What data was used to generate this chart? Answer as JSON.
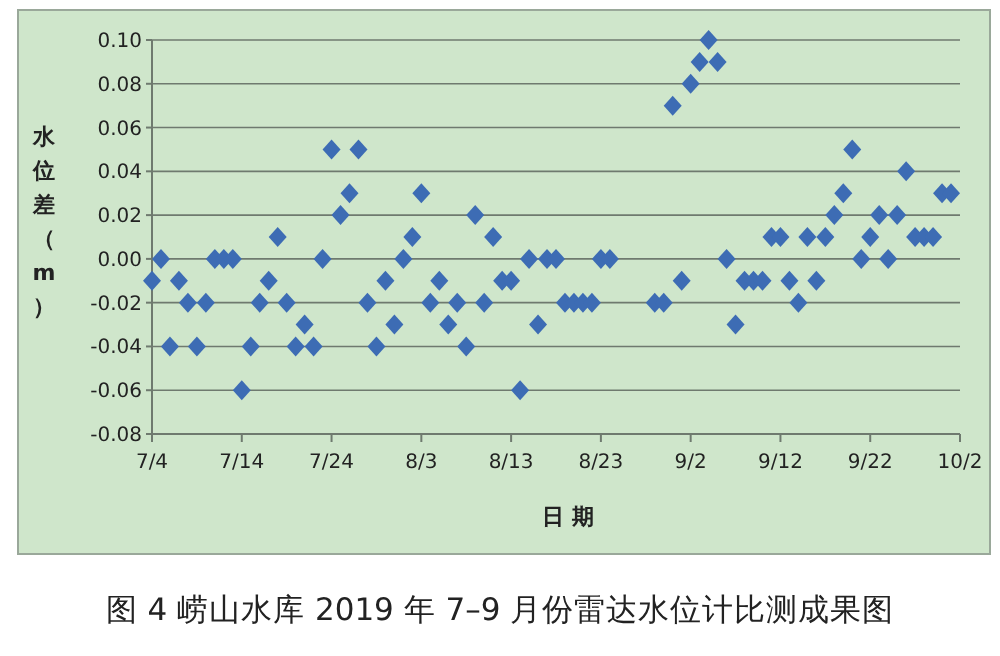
{
  "chart_data": {
    "type": "scatter",
    "title": "图 4  崂山水库 2019 年 7–9 月份雷达水位计比测成果图",
    "xlabel": "日 期",
    "ylabel": "水位差（m）",
    "x": [
      "--07-04",
      "--07-05",
      "--07-06",
      "--07-07",
      "--07-08",
      "--07-09",
      "--07-10",
      "--07-11",
      "--07-12",
      "--07-13",
      "--07-14",
      "--07-15",
      "--07-16",
      "--07-17",
      "--07-18",
      "--07-19",
      "--07-20",
      "--07-21",
      "--07-22",
      "--07-23",
      "--07-24",
      "--07-25",
      "--07-26",
      "--07-27",
      "--07-28",
      "--07-29",
      "--07-30",
      "--07-31",
      "--08-01",
      "--08-02",
      "--08-03",
      "--08-04",
      "--08-05",
      "--08-06",
      "--08-07",
      "--08-08",
      "--08-09",
      "--08-10",
      "--08-11",
      "--08-12",
      "--08-13",
      "--08-14",
      "--08-15",
      "--08-16",
      "--08-17",
      "--08-18",
      "--08-19",
      "--08-20",
      "--08-21",
      "--08-22",
      "--08-23",
      "--08-24",
      "--08-29",
      "--08-30",
      "--08-31",
      "--09-01",
      "--09-02",
      "--09-03",
      "--09-04",
      "--09-05",
      "--09-06",
      "--09-07",
      "--09-08",
      "--09-09",
      "--09-10",
      "--09-11",
      "--09-12",
      "--09-13",
      "--09-14",
      "--09-15",
      "--09-16",
      "--09-17",
      "--09-18",
      "--09-19",
      "--09-20",
      "--09-21",
      "--09-22",
      "--09-23",
      "--09-24",
      "--09-25",
      "--09-26",
      "--09-27",
      "--09-28",
      "--09-29",
      "--09-30",
      "--10-01"
    ],
    "series": [
      {
        "color": "#3d6cb4",
        "values": [
          -0.01,
          0,
          -0.04,
          -0.01,
          -0.02,
          -0.04,
          -0.02,
          0,
          0,
          0,
          -0.06,
          -0.04,
          -0.02,
          -0.01,
          0.01,
          -0.02,
          -0.04,
          -0.03,
          -0.04,
          0,
          0.05,
          0.02,
          0.03,
          0.05,
          -0.02,
          -0.04,
          -0.01,
          -0.03,
          0,
          0.01,
          0.03,
          -0.02,
          -0.01,
          -0.03,
          -0.02,
          -0.04,
          0.02,
          -0.02,
          0.01,
          -0.01,
          -0.01,
          -0.06,
          0,
          -0.03,
          0,
          0,
          -0.02,
          -0.02,
          -0.02,
          -0.02,
          0,
          0,
          -0.02,
          -0.02,
          0.07,
          -0.01,
          0.08,
          0.09,
          0.1,
          0.09,
          0,
          -0.03,
          -0.01,
          -0.01,
          -0.01,
          0.01,
          0.01,
          -0.01,
          -0.02,
          0.01,
          -0.01,
          0.01,
          0.02,
          0.03,
          0.05,
          0,
          0.01,
          0.02,
          0,
          0.02,
          0.04,
          0.01,
          0.01,
          0.01,
          0.03,
          0.03
        ]
      }
    ],
    "xlim": [
      "--07-04",
      "--10-02"
    ],
    "ylim": [
      -0.08,
      0.1
    ],
    "xticks": [
      {
        "value": "--07-04",
        "label": "7/4"
      },
      {
        "value": "--07-14",
        "label": "7/14"
      },
      {
        "value": "--07-24",
        "label": "7/24"
      },
      {
        "value": "--08-03",
        "label": "8/3"
      },
      {
        "value": "--08-13",
        "label": "8/13"
      },
      {
        "value": "--08-23",
        "label": "8/23"
      },
      {
        "value": "--09-02",
        "label": "9/2"
      },
      {
        "value": "--09-12",
        "label": "9/12"
      },
      {
        "value": "--09-22",
        "label": "9/22"
      },
      {
        "value": "--10-02",
        "label": "10/2"
      }
    ],
    "yticks": [
      {
        "value": -0.08,
        "label": "-0.08"
      },
      {
        "value": -0.06,
        "label": "-0.06"
      },
      {
        "value": -0.04,
        "label": "-0.04"
      },
      {
        "value": -0.02,
        "label": "-0.02"
      },
      {
        "value": 0,
        "label": "0.00"
      },
      {
        "value": 0.02,
        "label": "0.02"
      },
      {
        "value": 0.04,
        "label": "0.04"
      },
      {
        "value": 0.06,
        "label": "0.06"
      },
      {
        "value": 0.08,
        "label": "0.08"
      },
      {
        "value": 0.1,
        "label": "0.10"
      }
    ],
    "grid": "y",
    "marker": "diamond"
  }
}
